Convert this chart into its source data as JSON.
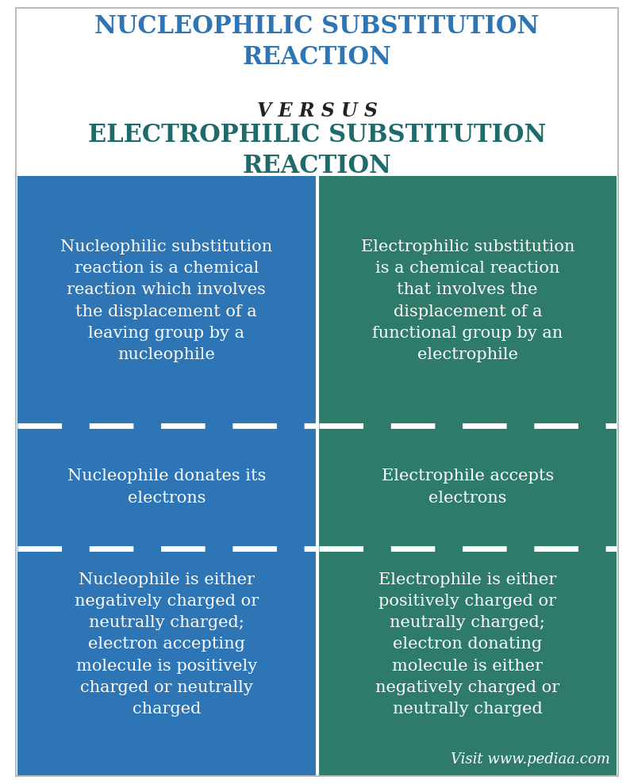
{
  "title1": "NUCLEOPHILIC SUBSTITUTION\nREACTION",
  "versus": "V E R S U S",
  "title2": "ELECTROPHILIC SUBSTITUTION\nREACTION",
  "title1_color": "#2E75B6",
  "title2_color": "#1F6B6B",
  "versus_color": "#222222",
  "left_bg": "#2E75B6",
  "right_bg": "#2E7B6B",
  "text_color": "#FFFFFF",
  "bg_color": "#FFFFFF",
  "left_col1_row1": "Nucleophilic substitution\nreaction is a chemical\nreaction which involves\nthe displacement of a\nleaving group by a\nnucleophile",
  "right_col1_row1": "Electrophilic substitution\nis a chemical reaction\nthat involves the\ndisplacement of a\nfunctional group by an\nelectrophile",
  "left_col1_row2": "Nucleophile donates its\nelectrons",
  "right_col1_row2": "Electrophile accepts\nelectrons",
  "left_col1_row3": "Nucleophile is either\nnegatively charged or\nneutrally charged;\nelectron accepting\nmolecule is positively\ncharged or neutrally\ncharged",
  "right_col1_row3": "Electrophile is either\npositively charged or\nneutrally charged;\nelectron donating\nmolecule is either\nnegatively charged or\nneutrally charged",
  "watermark": "Visit www.pediaa.com"
}
